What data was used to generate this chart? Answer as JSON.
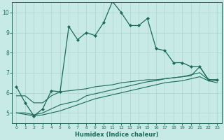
{
  "xlabel": "Humidex (Indice chaleur)",
  "ylabel": "",
  "background_color": "#c8eae6",
  "grid_color": "#b0d8d0",
  "line_color": "#1a6b5a",
  "x_ticks": [
    0,
    1,
    2,
    3,
    4,
    5,
    6,
    7,
    8,
    9,
    10,
    11,
    12,
    13,
    14,
    15,
    16,
    17,
    18,
    19,
    20,
    21,
    22,
    23
  ],
  "ylim": [
    4.5,
    10.5
  ],
  "xlim": [
    -0.5,
    23.5
  ],
  "yticks": [
    5,
    6,
    7,
    8,
    9,
    10
  ],
  "line1_x": [
    0,
    1,
    2,
    3,
    4,
    5,
    6,
    7,
    8,
    9,
    10,
    11,
    12,
    13,
    14,
    15,
    16,
    17,
    18,
    19,
    20,
    21,
    22,
    23
  ],
  "line1_y": [
    6.3,
    5.5,
    4.85,
    5.2,
    6.1,
    6.05,
    9.3,
    8.65,
    9.0,
    8.85,
    9.5,
    10.55,
    10.0,
    9.35,
    9.35,
    9.7,
    8.2,
    8.1,
    7.5,
    7.5,
    7.3,
    7.3,
    6.65,
    6.65
  ],
  "line2_x": [
    0,
    1,
    2,
    3,
    4,
    5,
    6,
    7,
    8,
    9,
    10,
    11,
    12,
    13,
    14,
    15,
    16,
    17,
    18,
    19,
    20,
    21,
    22,
    23
  ],
  "line2_y": [
    5.85,
    5.85,
    5.5,
    5.5,
    5.85,
    6.05,
    6.1,
    6.15,
    6.2,
    6.3,
    6.35,
    6.4,
    6.5,
    6.55,
    6.6,
    6.65,
    6.65,
    6.7,
    6.75,
    6.8,
    6.85,
    7.3,
    6.65,
    6.65
  ],
  "line3_x": [
    0,
    1,
    2,
    3,
    4,
    5,
    6,
    7,
    8,
    9,
    10,
    11,
    12,
    13,
    14,
    15,
    16,
    17,
    18,
    19,
    20,
    21,
    22,
    23
  ],
  "line3_y": [
    5.0,
    5.0,
    4.9,
    5.0,
    5.2,
    5.4,
    5.5,
    5.6,
    5.85,
    5.95,
    6.05,
    6.15,
    6.25,
    6.35,
    6.45,
    6.55,
    6.6,
    6.7,
    6.75,
    6.8,
    6.9,
    7.0,
    6.65,
    6.6
  ],
  "line4_x": [
    0,
    2,
    3,
    4,
    5,
    6,
    7,
    8,
    9,
    10,
    11,
    12,
    13,
    14,
    15,
    16,
    17,
    18,
    19,
    20,
    21,
    22,
    23
  ],
  "line4_y": [
    5.0,
    4.85,
    4.9,
    5.0,
    5.1,
    5.25,
    5.4,
    5.55,
    5.7,
    5.8,
    5.9,
    6.0,
    6.1,
    6.2,
    6.3,
    6.4,
    6.5,
    6.55,
    6.6,
    6.7,
    6.8,
    6.6,
    6.5
  ]
}
